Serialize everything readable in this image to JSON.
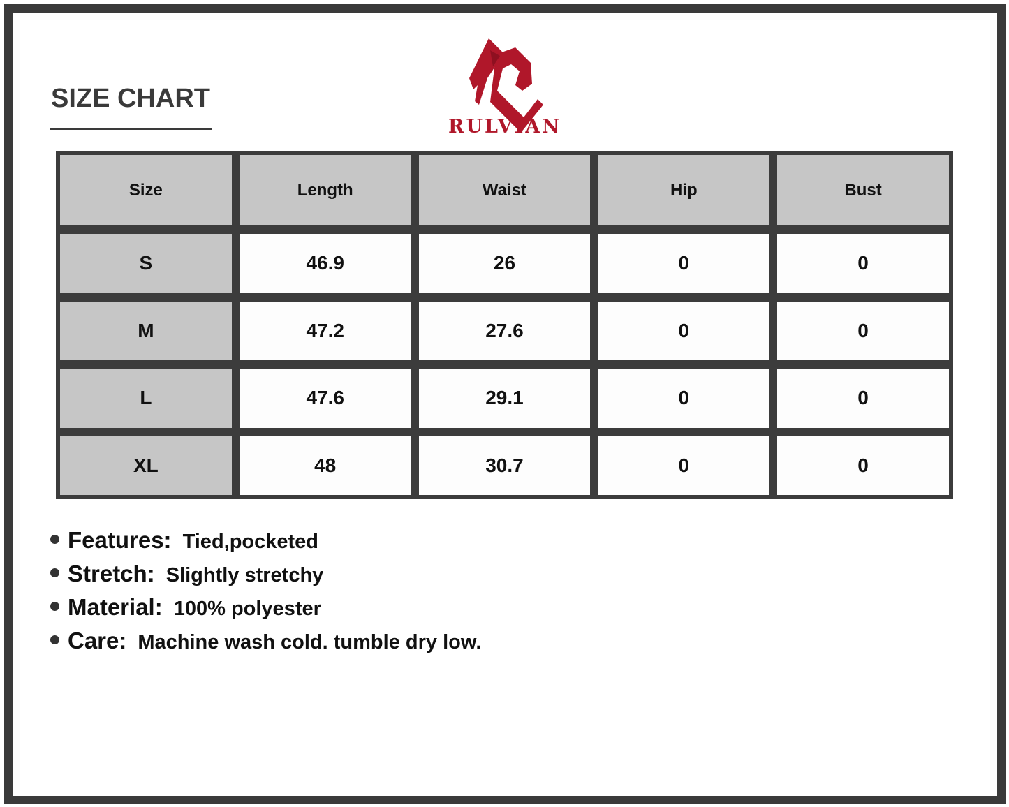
{
  "title": "SIZE CHART",
  "brand": {
    "name": "RULVIAN",
    "color": "#b0172a"
  },
  "table": {
    "headers": [
      "Size",
      "Length",
      "Waist",
      "Hip",
      "Bust"
    ],
    "rows": [
      [
        "S",
        "46.9",
        "26",
        "0",
        "0"
      ],
      [
        "M",
        "47.2",
        "27.6",
        "0",
        "0"
      ],
      [
        "L",
        "47.6",
        "29.1",
        "0",
        "0"
      ],
      [
        "XL",
        "48",
        "30.7",
        "0",
        "0"
      ]
    ]
  },
  "details": [
    {
      "label": "Features:",
      "value": "Tied,pocketed"
    },
    {
      "label": "Stretch:",
      "value": "Slightly stretchy"
    },
    {
      "label": "Material:",
      "value": "100% polyester"
    },
    {
      "label": "Care:",
      "value": "Machine wash cold. tumble dry low."
    }
  ]
}
